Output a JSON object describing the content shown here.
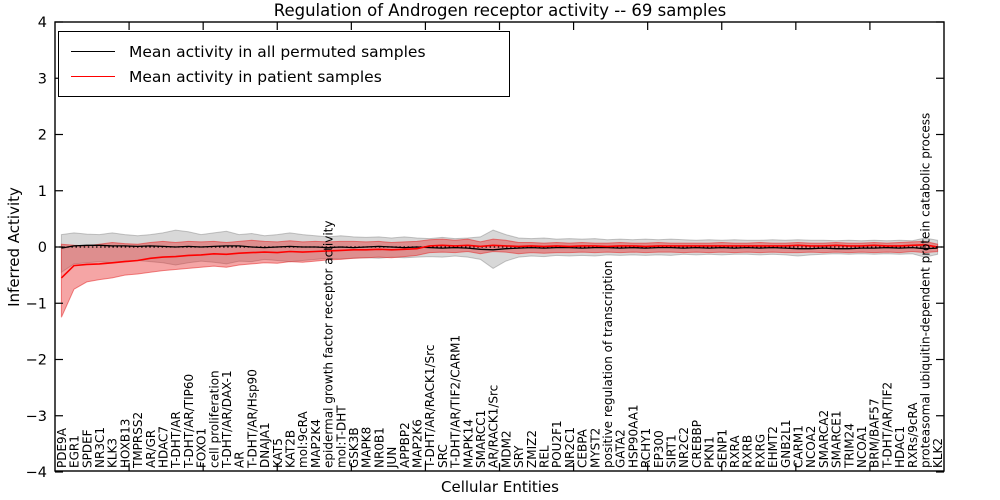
{
  "chart_data": {
    "type": "line",
    "title": "Regulation of Androgen receptor activity -- 69 samples",
    "xlabel": "Cellular Entities",
    "ylabel": "Inferred Activity",
    "ylim": [
      -4,
      4
    ],
    "yticks": [
      4,
      3,
      2,
      1,
      0,
      -1,
      -2,
      -3,
      -4
    ],
    "grid": false,
    "legend_position": "upper-left",
    "zero_line": {
      "style": "dotted",
      "color": "#000000"
    },
    "background": "#ffffff",
    "frame_color": "#000000",
    "categories": [
      "PDE9A",
      "EGR1",
      "SPDEF",
      "NR3C1",
      "KLK3",
      "HOXB13",
      "TMPRSS2",
      "AR/GR",
      "HDAC7",
      "T-DHT/AR",
      "T-DHT/AR/TIP60",
      "FOXO1",
      "cell proliferation",
      "T-DHT/AR/DAX-1",
      "AR",
      "T-DHT/AR/Hsp90",
      "DNAJA1",
      "KAT5",
      "KAT2B",
      "mol:9cRA",
      "MAP2K4",
      "epidermal growth factor receptor activity",
      "mol:T-DHT",
      "GSK3B",
      "MAPK8",
      "NR0B1",
      "JUN",
      "APPBP2",
      "MAP2K6",
      "T-DHT/AR/RACK1/Src",
      "SRC",
      "T-DHT/AR/TIF2/CARM1",
      "MAPK14",
      "SMARCC1",
      "AR/RACK1/Src",
      "MDM2",
      "SRY",
      "ZMIZ2",
      "REL",
      "POU2F1",
      "NR2C1",
      "CEBPA",
      "MYST2",
      "positive regulation of transcription",
      "GATA2",
      "HSP90AA1",
      "RCHY1",
      "EP300",
      "SIRT1",
      "NR2C2",
      "CREBBP",
      "PKN1",
      "SENP1",
      "RXRA",
      "RXRB",
      "RXRG",
      "EHMT2",
      "GNB2L1",
      "CARM1",
      "NCOA2",
      "SMARCA2",
      "SMARCE1",
      "TRIM24",
      "NCOA1",
      "BRM/BAF57",
      "T-DHT/AR/TIF2",
      "HDAC1",
      "RXRs/9cRA",
      "proteasomal ubiquitin-dependent protein catabolic process",
      "KLK2"
    ],
    "series": [
      {
        "name": "Mean activity in all permuted samples",
        "color": "#000000",
        "band_fill": "rgba(100,100,100,0.25)",
        "band_edge": "rgba(100,100,100,0.35)",
        "values": [
          -0.02,
          0.02,
          0.03,
          0.03,
          0.02,
          0.02,
          0.01,
          0.02,
          0.01,
          0.0,
          0.01,
          0.0,
          0.01,
          0.02,
          0.02,
          0.0,
          -0.01,
          0.0,
          0.01,
          0.0,
          0.0,
          -0.01,
          0.0,
          -0.01,
          0.0,
          0.01,
          0.0,
          -0.01,
          0.0,
          -0.01,
          -0.02,
          -0.01,
          -0.02,
          -0.04,
          -0.05,
          -0.03,
          -0.02,
          -0.01,
          -0.02,
          -0.01,
          -0.01,
          -0.02,
          -0.01,
          -0.01,
          -0.02,
          -0.01,
          -0.02,
          -0.01,
          -0.01,
          -0.02,
          -0.01,
          -0.02,
          -0.01,
          -0.02,
          -0.01,
          -0.02,
          -0.01,
          -0.02,
          -0.03,
          -0.03,
          -0.02,
          -0.03,
          -0.03,
          -0.02,
          -0.02,
          -0.01,
          -0.02,
          -0.01,
          -0.03,
          -0.02
        ],
        "band_upper": [
          0.22,
          0.25,
          0.23,
          0.22,
          0.25,
          0.22,
          0.2,
          0.22,
          0.25,
          0.3,
          0.27,
          0.22,
          0.25,
          0.28,
          0.22,
          0.24,
          0.2,
          0.22,
          0.25,
          0.22,
          0.2,
          0.18,
          0.2,
          0.18,
          0.17,
          0.18,
          0.16,
          0.18,
          0.16,
          0.15,
          0.17,
          0.15,
          0.16,
          0.18,
          0.3,
          0.22,
          0.16,
          0.15,
          0.16,
          0.14,
          0.15,
          0.14,
          0.15,
          0.13,
          0.14,
          0.13,
          0.14,
          0.13,
          0.14,
          0.13,
          0.12,
          0.13,
          0.12,
          0.13,
          0.12,
          0.12,
          0.13,
          0.12,
          0.13,
          0.12,
          0.12,
          0.11,
          0.12,
          0.11,
          0.12,
          0.11,
          0.12,
          0.11,
          0.16,
          0.12
        ],
        "band_lower": [
          -0.45,
          -0.3,
          -0.28,
          -0.26,
          -0.28,
          -0.25,
          -0.24,
          -0.26,
          -0.28,
          -0.32,
          -0.28,
          -0.25,
          -0.27,
          -0.3,
          -0.25,
          -0.26,
          -0.22,
          -0.24,
          -0.26,
          -0.24,
          -0.22,
          -0.2,
          -0.21,
          -0.2,
          -0.19,
          -0.2,
          -0.18,
          -0.19,
          -0.18,
          -0.17,
          -0.18,
          -0.16,
          -0.18,
          -0.22,
          -0.38,
          -0.25,
          -0.18,
          -0.16,
          -0.17,
          -0.15,
          -0.16,
          -0.15,
          -0.16,
          -0.14,
          -0.15,
          -0.14,
          -0.15,
          -0.14,
          -0.15,
          -0.13,
          -0.14,
          -0.13,
          -0.14,
          -0.13,
          -0.13,
          -0.14,
          -0.13,
          -0.14,
          -0.16,
          -0.14,
          -0.13,
          -0.12,
          -0.13,
          -0.12,
          -0.13,
          -0.12,
          -0.13,
          -0.12,
          -0.18,
          -0.13
        ]
      },
      {
        "name": "Mean activity in patient samples",
        "color": "#ff0000",
        "band_fill": "rgba(230,40,40,0.42)",
        "band_edge": "rgba(230,40,40,0.55)",
        "values": [
          -0.55,
          -0.33,
          -0.31,
          -0.3,
          -0.28,
          -0.26,
          -0.24,
          -0.2,
          -0.18,
          -0.17,
          -0.15,
          -0.14,
          -0.12,
          -0.13,
          -0.11,
          -0.1,
          -0.09,
          -0.1,
          -0.08,
          -0.09,
          -0.08,
          -0.07,
          -0.06,
          -0.05,
          -0.05,
          -0.04,
          -0.05,
          -0.04,
          -0.03,
          0.02,
          0.03,
          0.02,
          0.03,
          0.01,
          0.03,
          0.02,
          0.01,
          0.02,
          0.01,
          0.02,
          0.01,
          0.02,
          0.02,
          0.01,
          0.02,
          0.02,
          0.01,
          0.02,
          0.02,
          0.02,
          0.02,
          0.02,
          0.02,
          0.02,
          0.02,
          0.02,
          0.02,
          0.02,
          0.03,
          0.02,
          0.02,
          0.03,
          0.02,
          0.02,
          0.03,
          0.02,
          0.02,
          0.03,
          0.04,
          0.0
        ],
        "band_upper": [
          0.05,
          0.03,
          0.02,
          0.05,
          0.08,
          0.06,
          0.05,
          0.08,
          0.1,
          0.08,
          0.1,
          0.09,
          0.1,
          0.08,
          0.1,
          0.12,
          0.1,
          0.09,
          0.11,
          0.09,
          0.1,
          0.09,
          0.1,
          0.1,
          0.09,
          0.1,
          0.08,
          0.09,
          0.1,
          0.13,
          0.14,
          0.12,
          0.14,
          0.09,
          0.14,
          0.12,
          0.08,
          0.08,
          0.07,
          0.08,
          0.07,
          0.08,
          0.07,
          0.07,
          0.08,
          0.07,
          0.07,
          0.08,
          0.07,
          0.07,
          0.07,
          0.07,
          0.08,
          0.07,
          0.07,
          0.08,
          0.07,
          0.07,
          0.08,
          0.07,
          0.07,
          0.08,
          0.07,
          0.07,
          0.08,
          0.07,
          0.08,
          0.09,
          0.1,
          0.05
        ],
        "band_lower": [
          -1.25,
          -0.75,
          -0.62,
          -0.58,
          -0.55,
          -0.5,
          -0.48,
          -0.45,
          -0.42,
          -0.4,
          -0.38,
          -0.36,
          -0.34,
          -0.36,
          -0.32,
          -0.3,
          -0.28,
          -0.29,
          -0.26,
          -0.27,
          -0.25,
          -0.23,
          -0.22,
          -0.2,
          -0.19,
          -0.18,
          -0.19,
          -0.17,
          -0.15,
          -0.1,
          -0.09,
          -0.1,
          -0.08,
          -0.12,
          -0.08,
          -0.09,
          -0.12,
          -0.1,
          -0.11,
          -0.1,
          -0.1,
          -0.09,
          -0.1,
          -0.09,
          -0.1,
          -0.09,
          -0.1,
          -0.09,
          -0.09,
          -0.1,
          -0.09,
          -0.1,
          -0.09,
          -0.1,
          -0.09,
          -0.1,
          -0.09,
          -0.1,
          -0.1,
          -0.09,
          -0.1,
          -0.09,
          -0.1,
          -0.09,
          -0.1,
          -0.09,
          -0.1,
          -0.08,
          -0.1,
          -0.08
        ]
      }
    ]
  }
}
